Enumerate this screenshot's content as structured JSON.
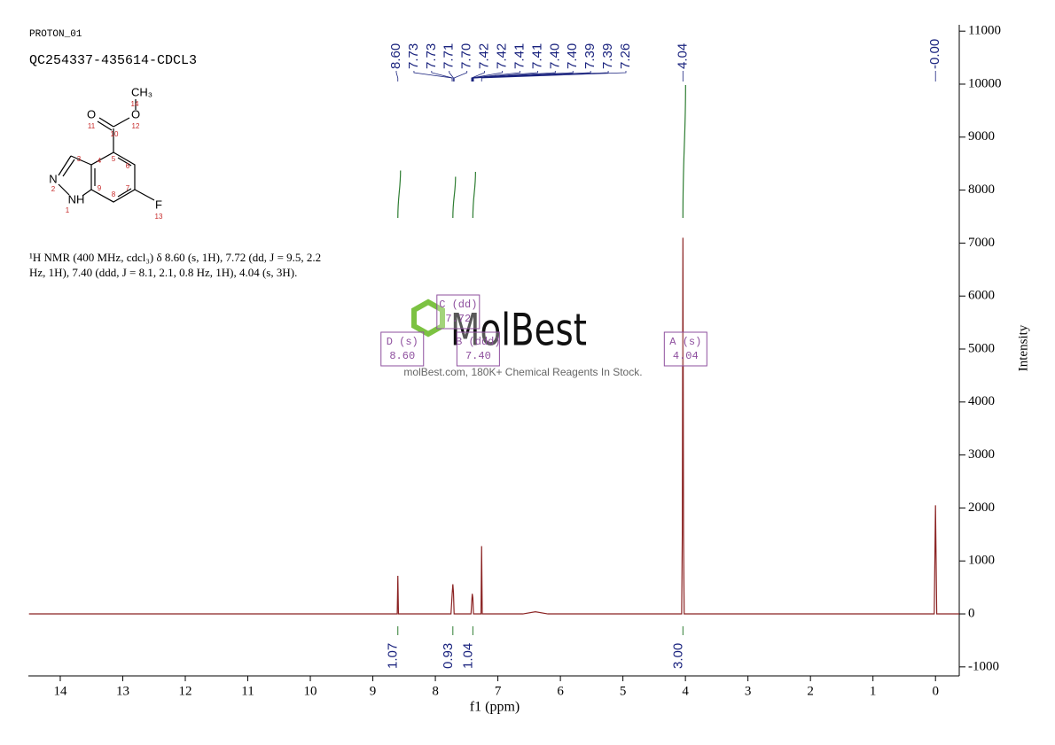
{
  "header": {
    "experiment": "PROTON_01",
    "sample": "QC254337-435614-CDCL3"
  },
  "description": "¹H NMR (400 MHz, cdcl₃) δ 8.60 (s, 1H), 7.72 (dd, J = 9.5, 2.2 Hz, 1H), 7.40 (ddd, J = 8.1, 2.1, 0.8 Hz, 1H), 4.04 (s, 3H).",
  "molecule": {
    "atoms": [
      "CH₃",
      "O",
      "O",
      "N",
      "NH",
      "F"
    ],
    "numbers": [
      "1",
      "2",
      "3",
      "4",
      "5",
      "6",
      "7",
      "8",
      "9",
      "10",
      "11",
      "12",
      "13",
      "14"
    ]
  },
  "watermark": {
    "brand": "MolBest",
    "tagline": "molBest.com, 180K+ Chemical Reagents In Stock."
  },
  "chart_data": {
    "type": "line",
    "x_label": "f1 (ppm)",
    "y_label": "Intensity",
    "xlim": [
      14.51,
      -0.38
    ],
    "xticks": [
      14,
      13,
      12,
      11,
      10,
      9,
      8,
      7,
      6,
      5,
      4,
      3,
      2,
      1,
      0
    ],
    "ylim": [
      -1170,
      11120
    ],
    "yticks": [
      -1000,
      0,
      1000,
      2000,
      3000,
      4000,
      5000,
      6000,
      7000,
      8000,
      9000,
      10000,
      11000
    ],
    "series": [
      {
        "name": "spectrum",
        "color": "#8b2323",
        "x": [
          14.5,
          8.65,
          8.61,
          8.6,
          8.59,
          7.75,
          7.73,
          7.72,
          7.71,
          7.7,
          7.43,
          7.41,
          7.4,
          7.39,
          7.27,
          7.26,
          7.25,
          6.6,
          6.4,
          6.2,
          4.06,
          4.05,
          4.04,
          4.03,
          4.02,
          0.02,
          0,
          -0.02,
          -0.38
        ],
        "values": [
          0,
          0,
          0,
          720,
          0,
          0,
          400,
          560,
          400,
          0,
          0,
          380,
          300,
          0,
          0,
          1280,
          0,
          0,
          40,
          0,
          0,
          1500,
          7100,
          1500,
          0,
          0,
          2050,
          0,
          0
        ]
      }
    ],
    "peak_labels": {
      "values": [
        8.6,
        7.73,
        7.73,
        7.71,
        7.7,
        7.42,
        7.42,
        7.41,
        7.41,
        7.4,
        7.4,
        7.39,
        7.39,
        7.26,
        4.04,
        -0.0
      ],
      "value_labels": [
        "8.60",
        "7.73",
        "7.73",
        "7.71",
        "7.70",
        "7.42",
        "7.42",
        "7.41",
        "7.41",
        "7.40",
        "7.40",
        "7.39",
        "7.39",
        "7.26",
        "4.04",
        "-0.00"
      ]
    },
    "integrals": {
      "x": [
        8.6,
        7.72,
        7.4,
        4.04
      ],
      "values": [
        1.07,
        0.93,
        1.04,
        3.0
      ],
      "value_labels": [
        "1.07",
        "0.93",
        "1.04",
        "3.00"
      ]
    },
    "multiplets": {
      "labels": [
        "D (s)",
        "C (dd)",
        "B (ddd)",
        "A (s)"
      ],
      "values": [
        8.6,
        7.72,
        7.4,
        4.04
      ],
      "value_labels": [
        "8.60",
        "7.72",
        "7.40",
        "4.04"
      ]
    }
  }
}
